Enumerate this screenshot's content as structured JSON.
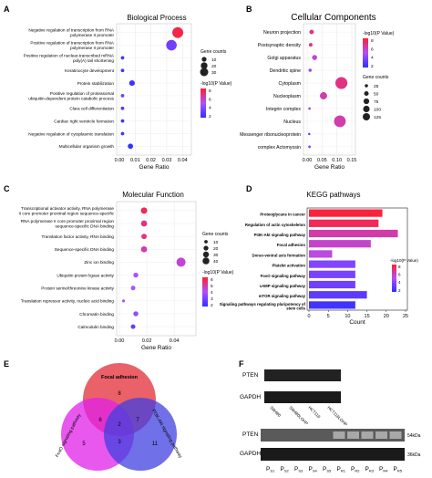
{
  "panels": {
    "A": {
      "letter": "A",
      "title": "Biological Process",
      "xlabel": "Gene Ratio",
      "xticks": [
        "0.00",
        "0.01",
        "0.02",
        "0.03",
        "0.04"
      ],
      "legend_color_title": "-log10(P Value)",
      "legend_color_ticks": [
        "8",
        "6",
        "4",
        "2"
      ],
      "legend_size_title": "Gene counts",
      "legend_size_ticks": [
        "10",
        "20",
        "30"
      ]
    },
    "B": {
      "letter": "B",
      "title": "Cellular Components",
      "xlabel": "Gene Ratio",
      "xticks": [
        "0.00",
        "0.05",
        "0.10",
        "0.15"
      ],
      "legend_color_title": "-log10(P Value)",
      "legend_color_ticks": [
        "8",
        "6",
        "4",
        "2"
      ],
      "legend_size_title": "Gene counts",
      "legend_size_ticks": [
        "25",
        "50",
        "75",
        "100",
        "125"
      ]
    },
    "C": {
      "letter": "C",
      "title": "Molecular Function",
      "xlabel": "Gene Ratio",
      "xticks": [
        "0.00",
        "0.02",
        "0.04"
      ],
      "legend_color_title": "-log10(P Value)",
      "legend_color_ticks": [
        "6",
        "5",
        "4",
        "3",
        "2"
      ],
      "legend_size_title": "Gene counts",
      "legend_size_ticks": [
        "10",
        "20",
        "30",
        "40"
      ]
    },
    "D": {
      "letter": "D",
      "title": "KEGG pathways",
      "xlabel": "Count",
      "xticks": [
        "0",
        "5",
        "10",
        "15",
        "20",
        "25"
      ],
      "legend_color_title": "-log10(P Value)",
      "legend_color_ticks": [
        "8",
        "6",
        "4",
        "2"
      ]
    },
    "E": {
      "letter": "E",
      "sets": [
        "Focal adhesion",
        "FoxO signaling pathway",
        "PI3K-Akt signaling pathway"
      ],
      "counts": [
        "8",
        "6",
        "7",
        "2",
        "3",
        "5",
        "11"
      ]
    },
    "F": {
      "letter": "F",
      "row1_label": "PTEN",
      "row2_label": "GAPDH",
      "lanes_top": [
        "SW480",
        "SW480LOHP",
        "HCT116",
        "HCT116LOHP"
      ],
      "row3_label": "PTEN",
      "row4_label": "GAPDH",
      "kda1": "54kDa",
      "kda2": "36kDa",
      "lanes_bottom": [
        "P",
        "P",
        "P",
        "P",
        "P",
        "P",
        "P",
        "P",
        "P",
        "P"
      ],
      "lanes_bottom_sub": [
        "S1",
        "S2",
        "S3",
        "S4",
        "S5",
        "R1",
        "R2",
        "R3",
        "R4",
        "R5"
      ]
    }
  },
  "chart_data": [
    {
      "type": "scatter",
      "panel": "A",
      "title": "Biological Process",
      "xlabel": "Gene Ratio",
      "xlim": [
        0,
        0.045
      ],
      "categories": [
        "Negative regulation of transcription from RNA polymerase II promoter",
        "Positive regulation of transcription from RNA polymerase II promoter",
        "Positive regulation of nuclear-transcribed mRNA poly(A) tail shortening",
        "Keratinocyte development",
        "Protein stabilization",
        "Positive regulation of proteasomal ubiquitin-dependent protein catabolic process",
        "Clara cell differentiation",
        "Cardiac right ventricle formation",
        "Negative regulation of cytoplasmic translation",
        "Multicellular organism growth"
      ],
      "x": [
        0.037,
        0.033,
        0.002,
        0.002,
        0.008,
        0.002,
        0.002,
        0.002,
        0.002,
        0.007
      ],
      "size": [
        30,
        28,
        3,
        3,
        8,
        3,
        3,
        3,
        3,
        7
      ],
      "color": [
        8.5,
        3,
        1.5,
        1.5,
        1.5,
        3,
        2,
        1.5,
        1.5,
        1.2
      ]
    },
    {
      "type": "scatter",
      "panel": "B",
      "title": "Cellular Components",
      "xlabel": "Gene Ratio",
      "xlim": [
        0,
        0.15
      ],
      "categories": [
        "Neuron projection",
        "Postsynaptic density",
        "Golgi apparatus",
        "Dendritic spine",
        "Cytoplasm",
        "Nucleoplasm",
        "Integrin complex",
        "Nucleus",
        "Messenger ribonucleoprotein",
        "complex Actomyosin"
      ],
      "x": [
        0.015,
        0.012,
        0.025,
        0.01,
        0.115,
        0.055,
        0.008,
        0.11,
        0.007,
        0.008
      ],
      "size": [
        15,
        10,
        20,
        8,
        110,
        40,
        5,
        105,
        4,
        5
      ],
      "color": [
        5,
        5,
        4,
        3,
        5,
        4.5,
        3,
        4.5,
        2,
        2.5
      ]
    },
    {
      "type": "scatter",
      "panel": "C",
      "title": "Molecular Function",
      "xlabel": "Gene Ratio",
      "xlim": [
        0,
        0.055
      ],
      "categories": [
        "Transcriptional activator activity, RNA polymerase II core promoter proximal region sequence-specific binding",
        "RNA polymerase II core promoter proximal region sequence-specific DNA binding",
        "Translation factor activity, RNA binding",
        "Sequence-specific DNA binding",
        "Zinc ion binding",
        "Ubiquitin protein ligase activity",
        "Protein serine/threonine kinase activity",
        "Translation repressor activity, nucleic acid binding",
        "Chromatin binding",
        "Calmodulin binding"
      ],
      "x": [
        0.018,
        0.018,
        0.018,
        0.018,
        0.045,
        0.012,
        0.01,
        0.003,
        0.012,
        0.01
      ],
      "size": [
        20,
        18,
        14,
        18,
        40,
        12,
        10,
        4,
        12,
        10
      ],
      "color": [
        6,
        5.5,
        5.5,
        5,
        4.5,
        4,
        4,
        4,
        3.5,
        2.5
      ]
    },
    {
      "type": "bar",
      "panel": "D",
      "title": "KEGG pathways",
      "xlabel": "Count",
      "xlim": [
        0,
        25
      ],
      "categories": [
        "Proteoglycans in cancer",
        "Regulation of actin cytoskeleton",
        "PI3K-Akt signaling pathway",
        "Focal adhesion",
        "Dorso-ventral axis formation",
        "Platelet activation",
        "FoxO signaling pathway",
        "cAMP signaling pathway",
        "mTOR signaling pathway",
        "Signaling pathways regulating pluripotency of stem cells"
      ],
      "values": [
        19,
        18,
        23,
        16,
        6,
        12,
        12,
        12,
        15,
        12
      ],
      "color": [
        8.8,
        8.3,
        6.8,
        6.2,
        5.8,
        3.9,
        3.6,
        3.4,
        2.8,
        2.0
      ]
    }
  ],
  "colors": {
    "low": "#3030ff",
    "mid": "#b050ff",
    "high": "#ff2030"
  }
}
